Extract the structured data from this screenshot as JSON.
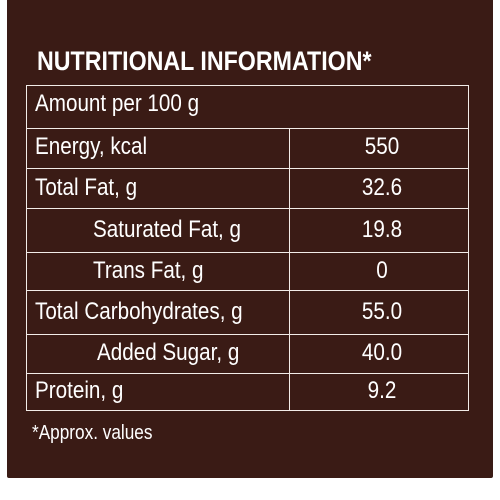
{
  "title": "NUTRITIONAL INFORMATION*",
  "header": "Amount per 100 g",
  "rows": [
    {
      "label": "Energy, kcal",
      "value": "550"
    },
    {
      "label": "Total Fat, g",
      "value": "32.6"
    },
    {
      "label": "Saturated Fat, g",
      "value": "19.8"
    },
    {
      "label": "Trans Fat, g",
      "value": "0"
    },
    {
      "label": "Total Carbohydrates, g",
      "value": "55.0"
    },
    {
      "label": "Added  Sugar, g",
      "value": "40.0"
    },
    {
      "label": "Protein, g",
      "value": "9.2"
    }
  ],
  "footnote": "*Approx. values",
  "colors": {
    "background": "#3a1b15",
    "text": "#ffffff",
    "lines": "#f2ece8"
  }
}
